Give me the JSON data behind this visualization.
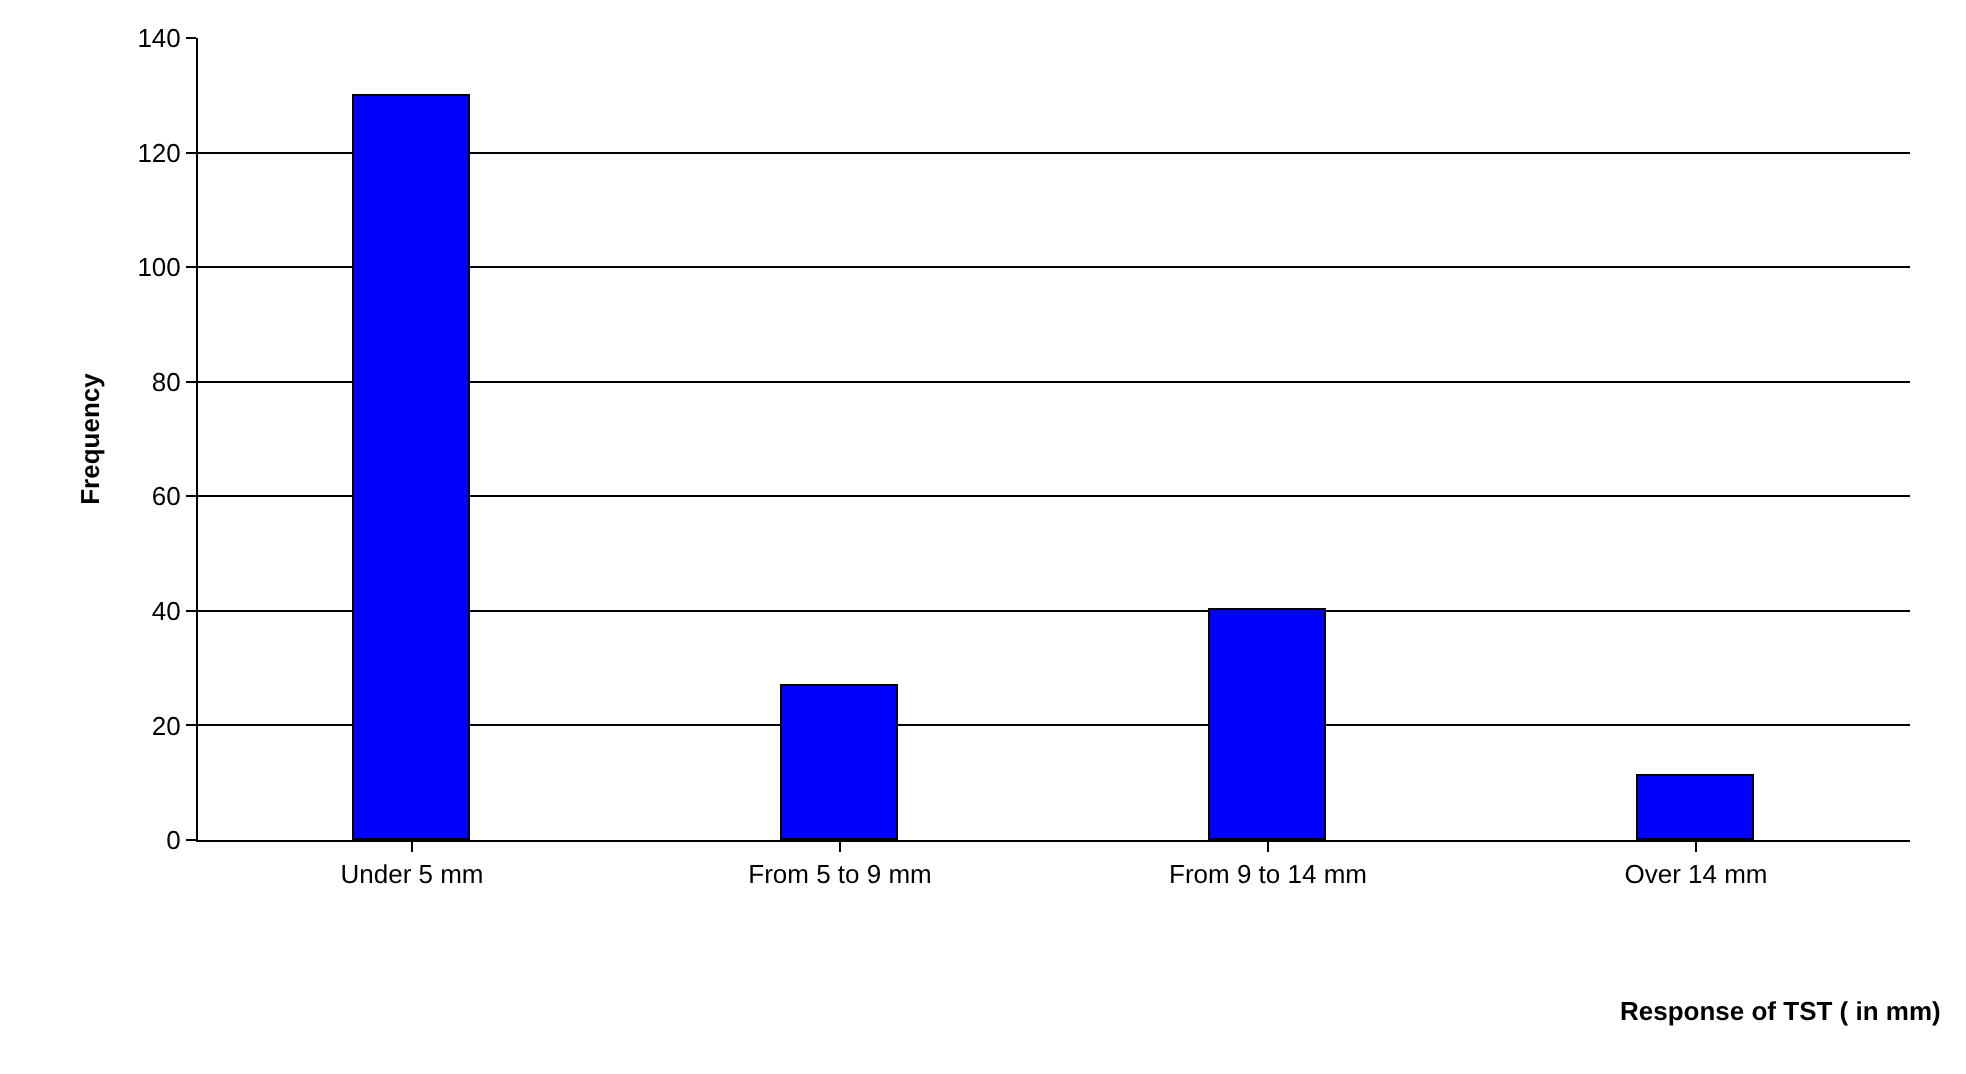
{
  "chart_data": {
    "type": "bar",
    "xlabel": "Response of TST ( in mm)",
    "ylabel": "Frequency",
    "categories": [
      "Under 5 mm",
      "From 5 to 9 mm",
      "From 9 to 14 mm",
      "Over 14 mm"
    ],
    "values": [
      130,
      27,
      40,
      11
    ],
    "color": "#0000ff",
    "ylim": [
      0,
      140
    ],
    "yticks": [
      0,
      20,
      40,
      60,
      80,
      100,
      120,
      140
    ],
    "grid": "y"
  }
}
